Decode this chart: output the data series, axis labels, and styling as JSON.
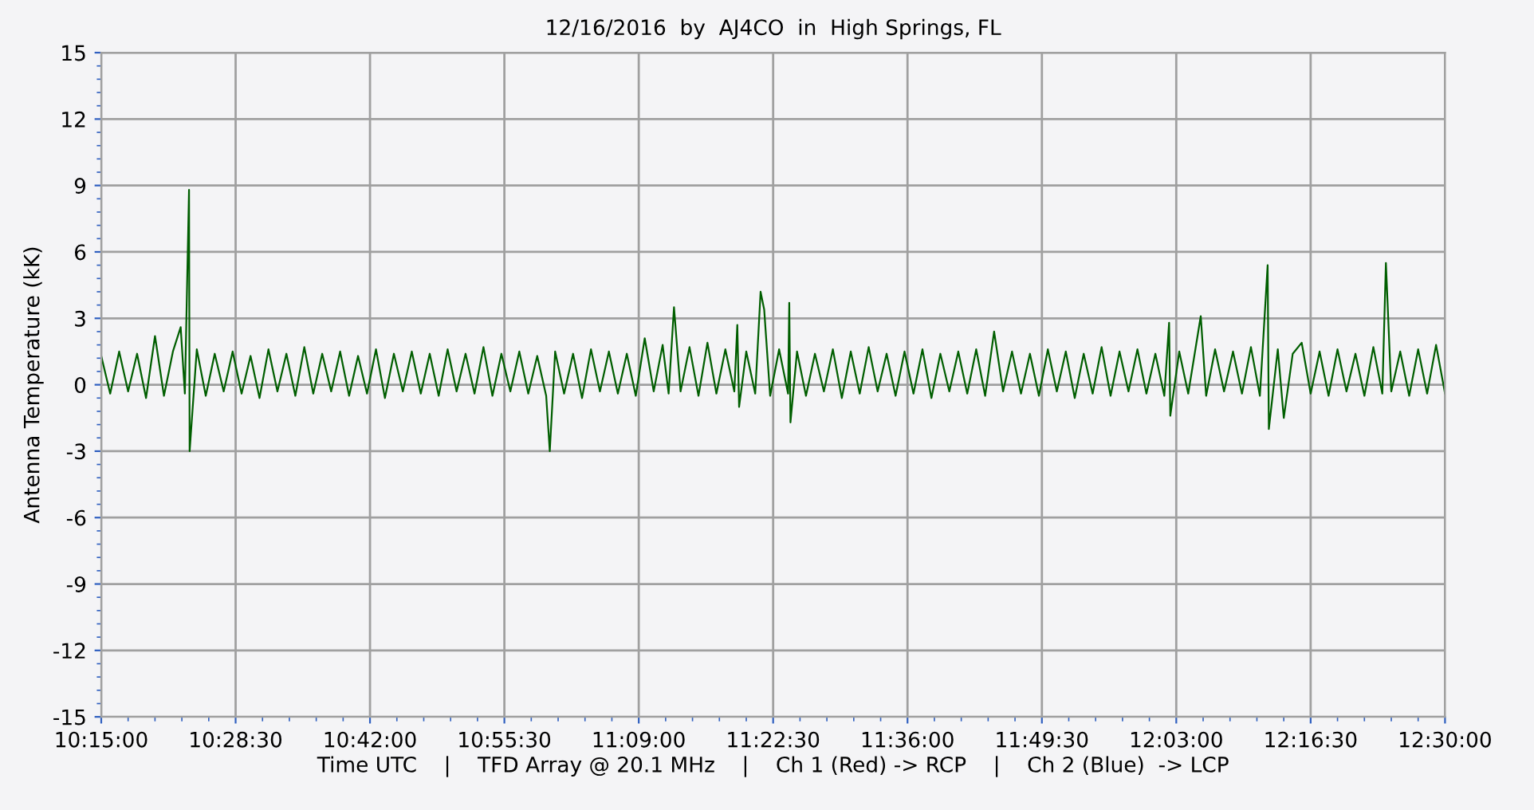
{
  "chart_data": {
    "type": "line",
    "title": "12/16/2016  by  AJ4CO  in  High Springs, FL",
    "xlabel": "Time UTC    |    TFD Array @ 20.1 MHz    |    Ch 1 (Red) -> RCP    |    Ch 2 (Blue)  -> LCP",
    "ylabel": "Antenna Temperature (kK)",
    "xlim": [
      10.25,
      12.5
    ],
    "xticks": [
      {
        "value": 10.25,
        "label": "10:15:00"
      },
      {
        "value": 10.475,
        "label": "10:28:30"
      },
      {
        "value": 10.7,
        "label": "10:42:00"
      },
      {
        "value": 10.925,
        "label": "10:55:30"
      },
      {
        "value": 11.15,
        "label": "11:09:00"
      },
      {
        "value": 11.375,
        "label": "11:22:30"
      },
      {
        "value": 11.6,
        "label": "11:36:00"
      },
      {
        "value": 11.825,
        "label": "11:49:30"
      },
      {
        "value": 12.05,
        "label": "12:03:00"
      },
      {
        "value": 12.275,
        "label": "12:16:30"
      },
      {
        "value": 12.5,
        "label": "12:30:00"
      }
    ],
    "ylim": [
      -15,
      15
    ],
    "yticks": [
      -15,
      -12,
      -9,
      -6,
      -3,
      0,
      3,
      6,
      9,
      12,
      15
    ],
    "grid": true,
    "legend": false,
    "marker": "none",
    "line_style": "solid",
    "series": [
      {
        "color": "#005e00",
        "x": [
          10.25,
          10.265,
          10.28,
          10.295,
          10.31,
          10.325,
          10.34,
          10.355,
          10.37,
          10.383,
          10.39,
          10.397,
          10.398,
          10.41,
          10.425,
          10.44,
          10.455,
          10.47,
          10.485,
          10.5,
          10.515,
          10.53,
          10.545,
          10.56,
          10.575,
          10.59,
          10.605,
          10.62,
          10.635,
          10.65,
          10.665,
          10.68,
          10.695,
          10.71,
          10.725,
          10.74,
          10.755,
          10.77,
          10.785,
          10.8,
          10.815,
          10.83,
          10.845,
          10.86,
          10.875,
          10.89,
          10.905,
          10.92,
          10.935,
          10.95,
          10.965,
          10.98,
          10.995,
          11.001,
          11.01,
          11.025,
          11.04,
          11.055,
          11.07,
          11.085,
          11.1,
          11.115,
          11.13,
          11.145,
          11.16,
          11.175,
          11.19,
          11.2,
          11.209,
          11.22,
          11.235,
          11.25,
          11.265,
          11.28,
          11.295,
          11.31,
          11.315,
          11.318,
          11.33,
          11.345,
          11.354,
          11.36,
          11.37,
          11.385,
          11.4,
          11.402,
          11.404,
          11.415,
          11.43,
          11.445,
          11.46,
          11.475,
          11.49,
          11.505,
          11.52,
          11.535,
          11.55,
          11.565,
          11.58,
          11.595,
          11.61,
          11.625,
          11.64,
          11.655,
          11.67,
          11.685,
          11.7,
          11.715,
          11.73,
          11.745,
          11.76,
          11.775,
          11.79,
          11.805,
          11.82,
          11.835,
          11.85,
          11.865,
          11.88,
          11.895,
          11.91,
          11.925,
          11.94,
          11.955,
          11.97,
          11.985,
          12.0,
          12.015,
          12.03,
          12.038,
          12.04,
          12.055,
          12.07,
          12.091,
          12.1,
          12.115,
          12.13,
          12.145,
          12.16,
          12.175,
          12.19,
          12.203,
          12.205,
          12.22,
          12.23,
          12.245,
          12.26,
          12.275,
          12.29,
          12.305,
          12.32,
          12.335,
          12.35,
          12.365,
          12.38,
          12.395,
          12.401,
          12.41,
          12.425,
          12.44,
          12.455,
          12.47,
          12.485,
          12.5
        ],
        "values": [
          1.3,
          -0.4,
          1.5,
          -0.3,
          1.4,
          -0.6,
          2.2,
          -0.5,
          1.5,
          2.6,
          -0.4,
          8.8,
          -3.0,
          1.6,
          -0.5,
          1.4,
          -0.3,
          1.5,
          -0.4,
          1.3,
          -0.6,
          1.6,
          -0.3,
          1.4,
          -0.5,
          1.7,
          -0.4,
          1.4,
          -0.3,
          1.5,
          -0.5,
          1.3,
          -0.4,
          1.6,
          -0.6,
          1.4,
          -0.3,
          1.5,
          -0.4,
          1.4,
          -0.5,
          1.6,
          -0.3,
          1.4,
          -0.4,
          1.7,
          -0.5,
          1.4,
          -0.3,
          1.5,
          -0.4,
          1.3,
          -0.5,
          -3.0,
          1.5,
          -0.4,
          1.4,
          -0.6,
          1.6,
          -0.3,
          1.5,
          -0.4,
          1.4,
          -0.5,
          2.1,
          -0.3,
          1.8,
          -0.4,
          3.5,
          -0.3,
          1.7,
          -0.5,
          1.9,
          -0.4,
          1.6,
          -0.3,
          2.7,
          -1.0,
          1.5,
          -0.4,
          4.2,
          3.4,
          -0.5,
          1.6,
          -0.4,
          3.7,
          -1.7,
          1.5,
          -0.5,
          1.4,
          -0.3,
          1.6,
          -0.6,
          1.5,
          -0.4,
          1.7,
          -0.3,
          1.4,
          -0.5,
          1.5,
          -0.4,
          1.6,
          -0.6,
          1.4,
          -0.3,
          1.5,
          -0.4,
          1.6,
          -0.5,
          2.4,
          -0.3,
          1.5,
          -0.4,
          1.4,
          -0.5,
          1.6,
          -0.3,
          1.5,
          -0.6,
          1.4,
          -0.4,
          1.7,
          -0.5,
          1.5,
          -0.3,
          1.6,
          -0.4,
          1.4,
          -0.5,
          2.8,
          -1.4,
          1.5,
          -0.4,
          3.1,
          -0.5,
          1.6,
          -0.3,
          1.5,
          -0.4,
          1.7,
          -0.5,
          5.4,
          -2.0,
          1.6,
          -1.5,
          1.4,
          1.9,
          -0.4,
          1.5,
          -0.5,
          1.6,
          -0.3,
          1.4,
          -0.5,
          1.7,
          -0.4,
          5.5,
          -0.3,
          1.5,
          -0.5,
          1.6,
          -0.4,
          1.8,
          -0.4
        ]
      }
    ]
  }
}
